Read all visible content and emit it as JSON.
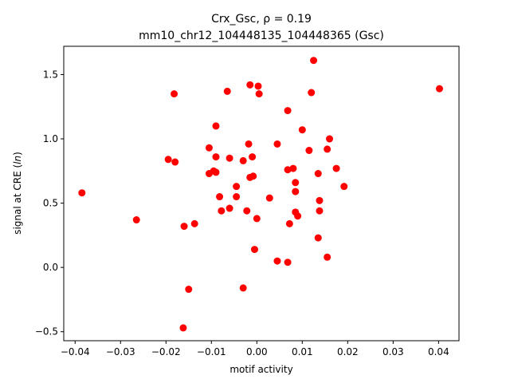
{
  "chart_data": {
    "type": "scatter",
    "title_line1": "Crx_Gsc, ρ = 0.19",
    "title_line2": "mm10_chr12_104448135_104448365 (Gsc)",
    "xlabel": "motif activity",
    "ylabel": "signal at CRE (ln)",
    "xlim": [
      -0.0425,
      0.0445
    ],
    "ylim": [
      -0.57,
      1.72
    ],
    "xticks": [
      -0.04,
      -0.03,
      -0.02,
      -0.01,
      0.0,
      0.01,
      0.02,
      0.03,
      0.04
    ],
    "xtick_labels": [
      "−0.04",
      "−0.03",
      "−0.02",
      "−0.01",
      "0.00",
      "0.01",
      "0.02",
      "0.03",
      "0.04"
    ],
    "yticks": [
      -0.5,
      0.0,
      0.5,
      1.0,
      1.5
    ],
    "ytick_labels": [
      "−0.5",
      "0.0",
      "0.5",
      "1.0",
      "1.5"
    ],
    "grid": false,
    "marker_color": "#ff0000",
    "points": [
      {
        "x": -0.0385,
        "y": 0.58
      },
      {
        "x": -0.0265,
        "y": 0.37
      },
      {
        "x": -0.0195,
        "y": 0.84
      },
      {
        "x": -0.0182,
        "y": 1.35
      },
      {
        "x": -0.018,
        "y": 0.82
      },
      {
        "x": -0.0162,
        "y": -0.47
      },
      {
        "x": -0.016,
        "y": 0.32
      },
      {
        "x": -0.015,
        "y": -0.17
      },
      {
        "x": -0.0137,
        "y": 0.34
      },
      {
        "x": -0.0105,
        "y": 0.93
      },
      {
        "x": -0.0105,
        "y": 0.73
      },
      {
        "x": -0.0095,
        "y": 0.75
      },
      {
        "x": -0.009,
        "y": 1.1
      },
      {
        "x": -0.009,
        "y": 0.86
      },
      {
        "x": -0.009,
        "y": 0.74
      },
      {
        "x": -0.0082,
        "y": 0.55
      },
      {
        "x": -0.0078,
        "y": 0.44
      },
      {
        "x": -0.0065,
        "y": 1.37
      },
      {
        "x": -0.006,
        "y": 0.85
      },
      {
        "x": -0.006,
        "y": 0.46
      },
      {
        "x": -0.0045,
        "y": 0.63
      },
      {
        "x": -0.0045,
        "y": 0.55
      },
      {
        "x": -0.003,
        "y": 0.83
      },
      {
        "x": -0.003,
        "y": -0.16
      },
      {
        "x": -0.0022,
        "y": 0.44
      },
      {
        "x": -0.0018,
        "y": 0.96
      },
      {
        "x": -0.0015,
        "y": 1.42
      },
      {
        "x": -0.0015,
        "y": 0.7
      },
      {
        "x": -0.001,
        "y": 0.86
      },
      {
        "x": -0.0008,
        "y": 0.71
      },
      {
        "x": -0.0005,
        "y": 0.14
      },
      {
        "x": 0.0,
        "y": 0.38
      },
      {
        "x": 0.0003,
        "y": 1.41
      },
      {
        "x": 0.0005,
        "y": 1.35
      },
      {
        "x": 0.0028,
        "y": 0.54
      },
      {
        "x": 0.0045,
        "y": 0.96
      },
      {
        "x": 0.0045,
        "y": 0.05
      },
      {
        "x": 0.0068,
        "y": 1.22
      },
      {
        "x": 0.0068,
        "y": 0.76
      },
      {
        "x": 0.0068,
        "y": 0.04
      },
      {
        "x": 0.0072,
        "y": 0.34
      },
      {
        "x": 0.008,
        "y": 0.77
      },
      {
        "x": 0.0085,
        "y": 0.66
      },
      {
        "x": 0.0085,
        "y": 0.59
      },
      {
        "x": 0.0085,
        "y": 0.43
      },
      {
        "x": 0.009,
        "y": 0.4
      },
      {
        "x": 0.01,
        "y": 1.07
      },
      {
        "x": 0.0115,
        "y": 0.91
      },
      {
        "x": 0.012,
        "y": 1.36
      },
      {
        "x": 0.0125,
        "y": 1.61
      },
      {
        "x": 0.0135,
        "y": 0.73
      },
      {
        "x": 0.0135,
        "y": 0.23
      },
      {
        "x": 0.0138,
        "y": 0.52
      },
      {
        "x": 0.0138,
        "y": 0.44
      },
      {
        "x": 0.0155,
        "y": 0.92
      },
      {
        "x": 0.0155,
        "y": 0.08
      },
      {
        "x": 0.016,
        "y": 1.0
      },
      {
        "x": 0.0175,
        "y": 0.77
      },
      {
        "x": 0.0192,
        "y": 0.63
      },
      {
        "x": 0.0402,
        "y": 1.39
      }
    ]
  }
}
